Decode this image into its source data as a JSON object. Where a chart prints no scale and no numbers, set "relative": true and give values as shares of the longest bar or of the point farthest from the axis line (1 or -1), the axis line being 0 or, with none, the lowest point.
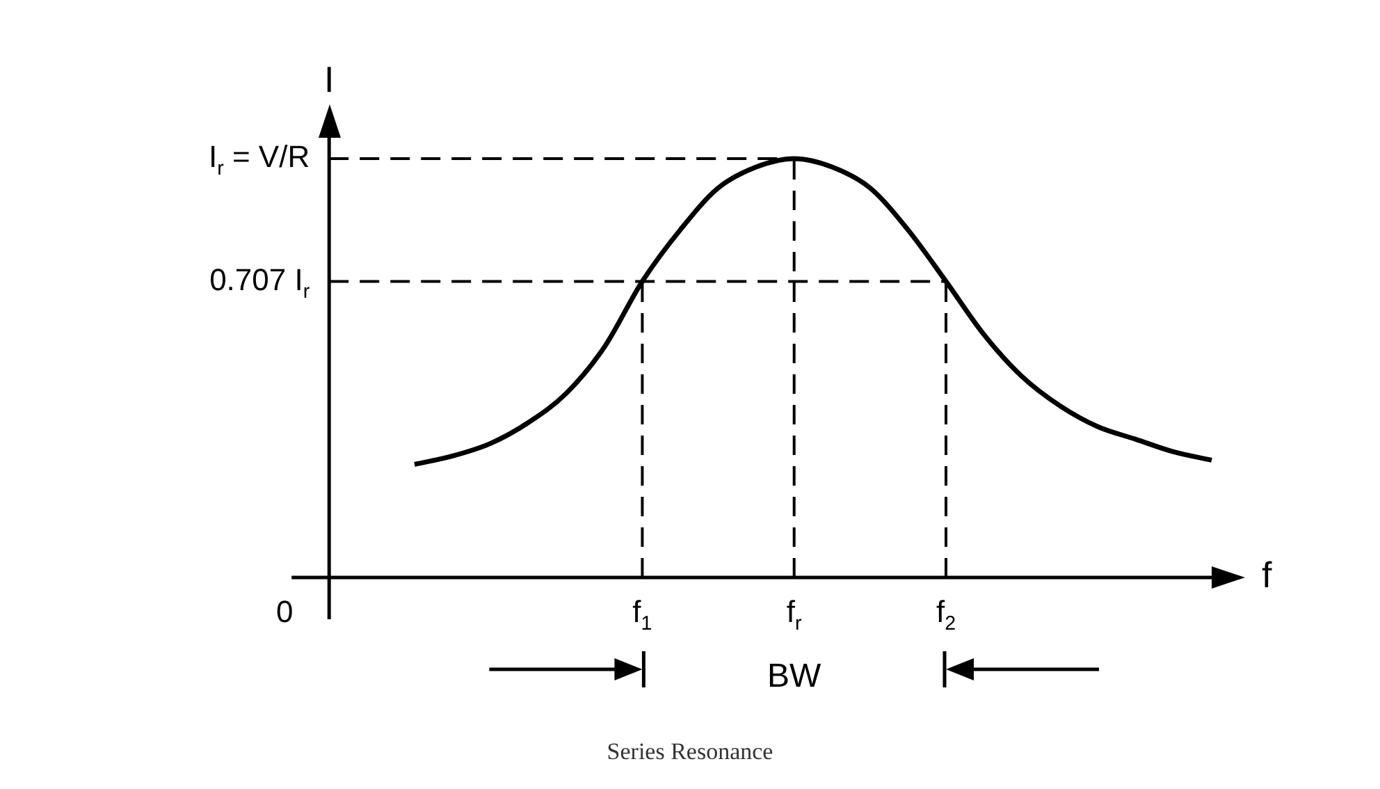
{
  "chart_data": {
    "type": "line",
    "title": "Series Resonance",
    "xlabel": "f",
    "ylabel": "I",
    "relative": true,
    "categories": [
      null,
      null,
      null,
      null,
      null,
      null,
      "f$_{1}$",
      null,
      null,
      null,
      "f$_{r}$",
      null,
      null,
      null,
      "f$_{2}$",
      null,
      null,
      null,
      null,
      null,
      null,
      null
    ],
    "series": [
      {
        "color": "#000000",
        "values": [
          0.27,
          0.29,
          0.32,
          0.37,
          0.44,
          0.55,
          0.707,
          0.83,
          0.93,
          0.98,
          1.0,
          0.98,
          0.93,
          0.83,
          0.707,
          0.58,
          0.48,
          0.41,
          0.36,
          0.33,
          0.3,
          0.28
        ]
      }
    ],
    "ref_lines": [
      {
        "axis": "y",
        "value": 1.0,
        "label": "I$_{r}$ = V/R",
        "line_style": "dashed"
      },
      {
        "axis": "y",
        "value": 0.707,
        "label": "0.707 I$_{r}$",
        "line_style": "dashed"
      },
      {
        "axis": "x",
        "value": "f$_{1}$",
        "line_style": "dashed"
      },
      {
        "axis": "x",
        "value": "f$_{r}$",
        "line_style": "dashed"
      },
      {
        "axis": "x",
        "value": "f$_{2}$",
        "line_style": "dashed"
      }
    ],
    "annotations": [
      "0",
      "BW"
    ],
    "line_style": "solid",
    "marker": "none"
  }
}
